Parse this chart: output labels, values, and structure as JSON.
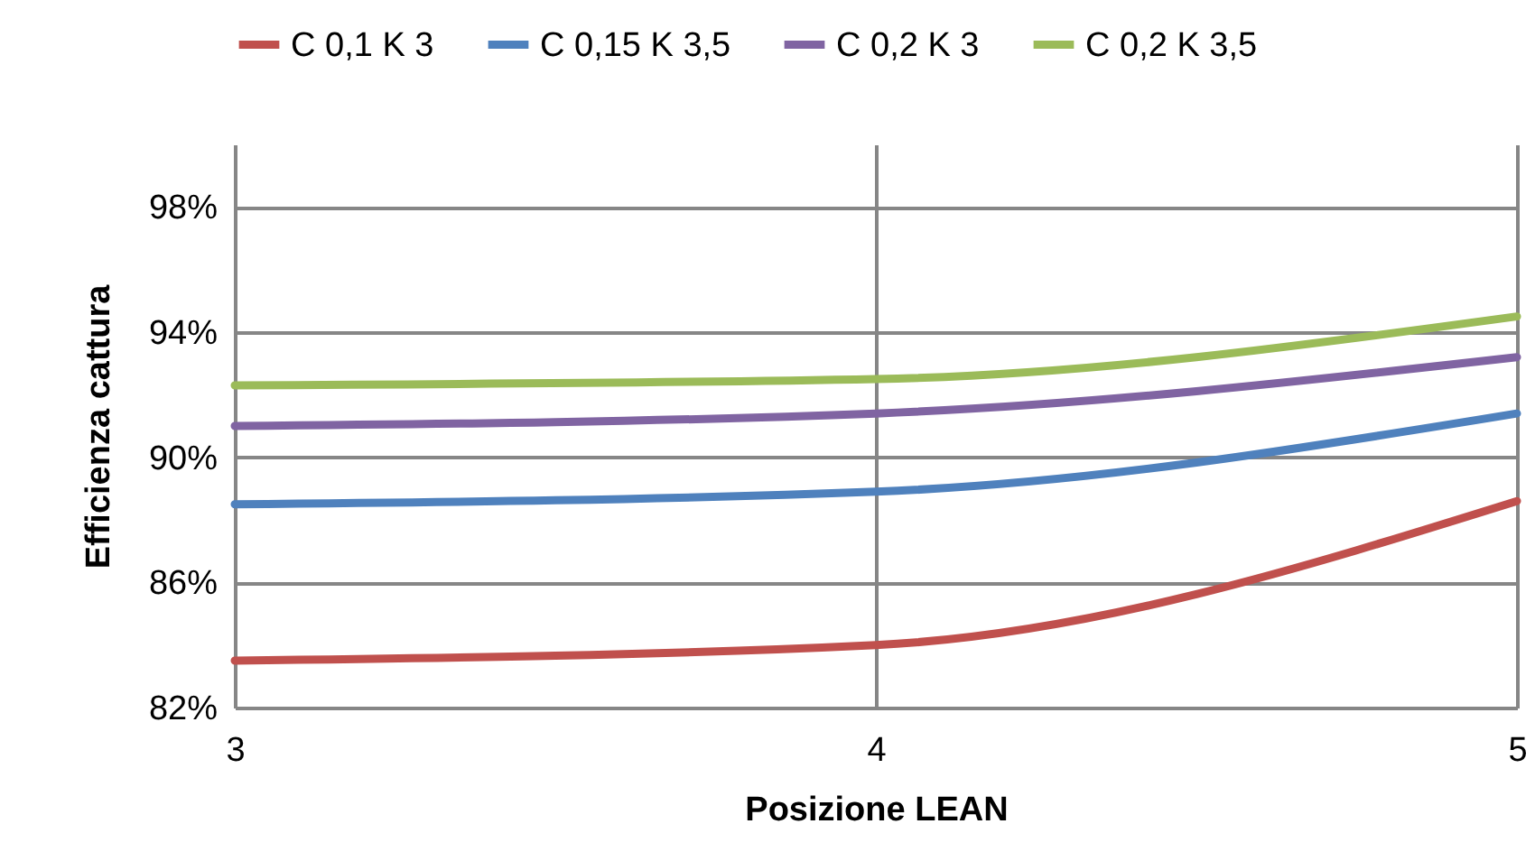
{
  "chart_data": {
    "type": "line",
    "xlabel": "Posizione LEAN",
    "ylabel": "Efficienza cattura",
    "x": [
      3,
      4,
      5
    ],
    "series": [
      {
        "name": "C 0,1 K 3",
        "color": "#c0504d",
        "values": [
          83.5,
          84.0,
          88.6
        ]
      },
      {
        "name": "C 0,15 K 3,5",
        "color": "#4f81bd",
        "values": [
          88.5,
          88.9,
          91.4
        ]
      },
      {
        "name": "C 0,2 K 3",
        "color": "#8064a2",
        "values": [
          91.0,
          91.4,
          93.2
        ]
      },
      {
        "name": "C 0,2 K 3,5",
        "color": "#9bbb59",
        "values": [
          92.3,
          92.5,
          94.5
        ]
      }
    ],
    "xlim": [
      3,
      5
    ],
    "xticks": [
      3,
      4,
      5
    ],
    "ylim": [
      82,
      100
    ],
    "yticks": [
      {
        "value": 82,
        "label": "82%"
      },
      {
        "value": 86,
        "label": "86%"
      },
      {
        "value": 90,
        "label": "90%"
      },
      {
        "value": 94,
        "label": "94%"
      },
      {
        "value": 98,
        "label": "98%"
      }
    ],
    "grid": true,
    "legend": "top",
    "marker": "none",
    "line_style": "solid"
  }
}
